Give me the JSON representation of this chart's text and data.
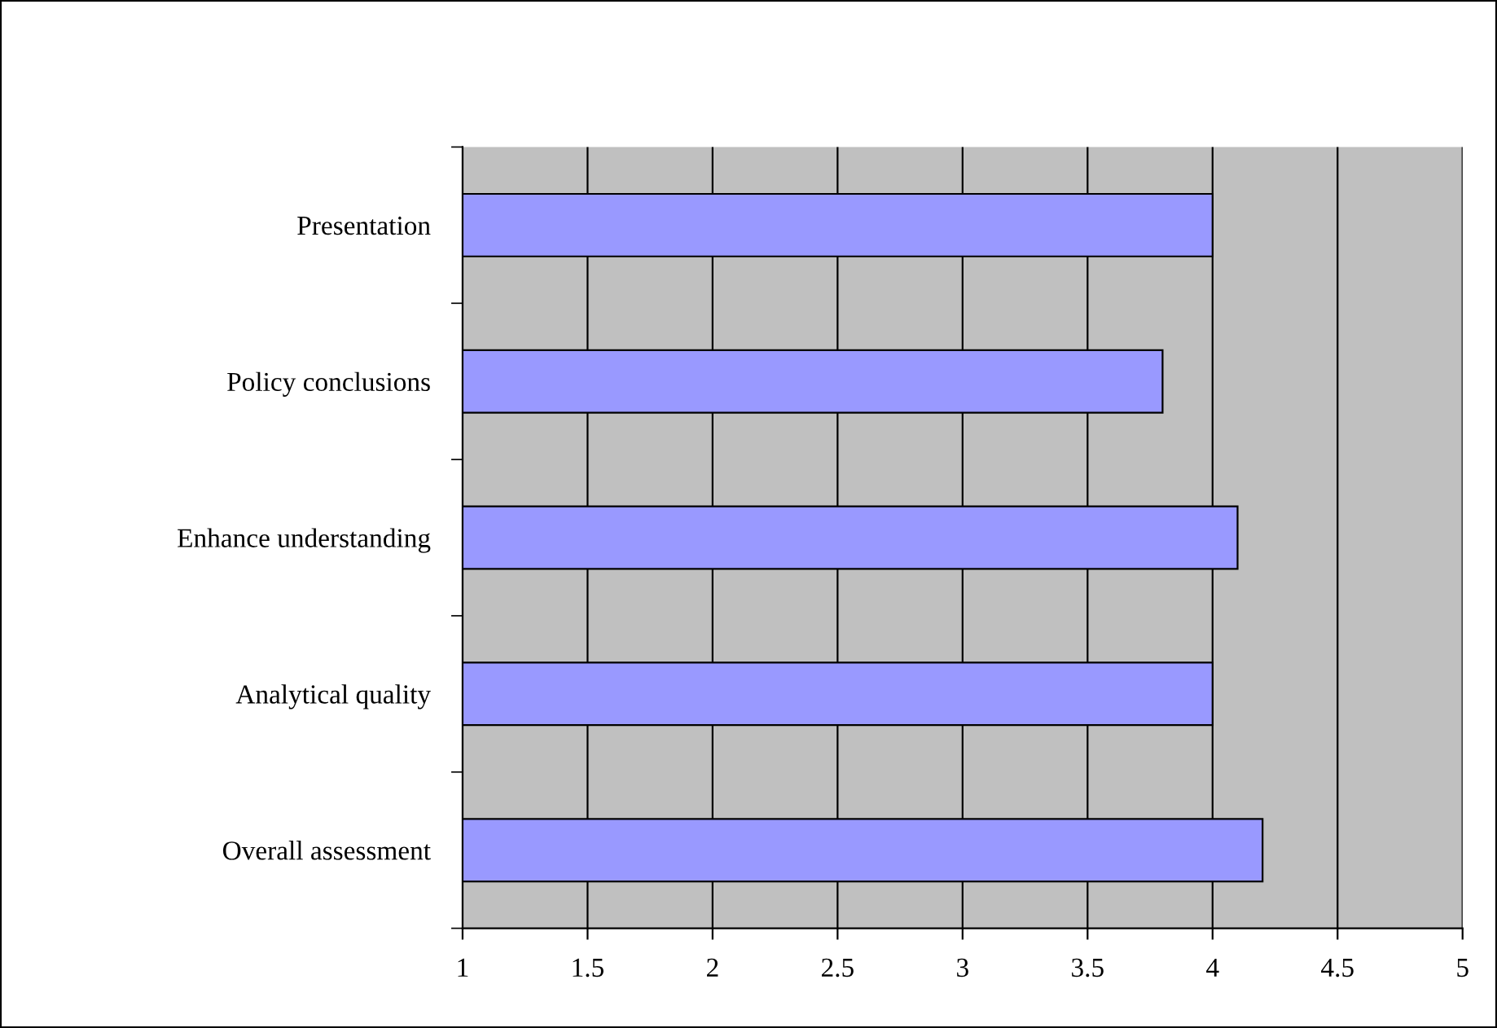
{
  "chart_data": {
    "type": "bar",
    "orientation": "horizontal",
    "categories": [
      "Presentation",
      "Policy conclusions",
      "Enhance understanding",
      "Analytical quality",
      "Overall assessment"
    ],
    "values": [
      4.0,
      3.8,
      4.1,
      4.0,
      4.2
    ],
    "color": "#9999ff",
    "xlim": [
      1,
      5
    ],
    "xticks": [
      1,
      1.5,
      2,
      2.5,
      3,
      3.5,
      4,
      4.5,
      5
    ],
    "grid": "x",
    "legend": false
  }
}
